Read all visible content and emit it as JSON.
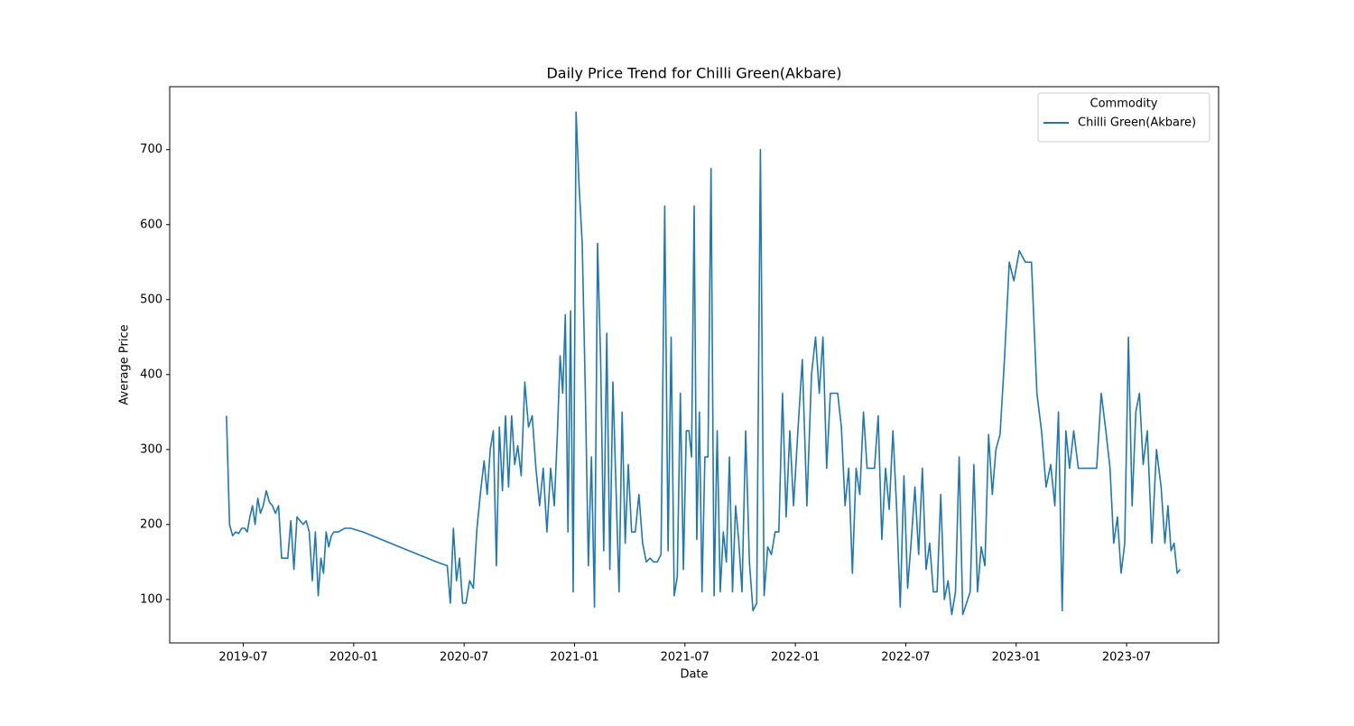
{
  "chart_data": {
    "type": "line",
    "title": "Daily Price Trend for Chilli Green(Akbare)",
    "xlabel": "Date",
    "ylabel": "Average Price",
    "legend_title": "Commodity",
    "legend": "upper right",
    "xlim": [
      "2019-03",
      "2023-12"
    ],
    "xticks": [
      "2019-07",
      "2020-01",
      "2020-07",
      "2021-01",
      "2021-07",
      "2022-01",
      "2022-07",
      "2023-01",
      "2023-07"
    ],
    "ylim": [
      42,
      784
    ],
    "yticks": [
      100,
      200,
      300,
      400,
      500,
      600,
      700
    ],
    "x": [
      "2019-06",
      "2019-06",
      "2019-06",
      "2019-06",
      "2019-06",
      "2019-06",
      "2019-07",
      "2019-07",
      "2019-07",
      "2019-07",
      "2019-07",
      "2019-07",
      "2019-07",
      "2019-08",
      "2019-08",
      "2019-08",
      "2019-08",
      "2019-08",
      "2019-08",
      "2019-09",
      "2019-09",
      "2019-09",
      "2019-09",
      "2019-09",
      "2019-09",
      "2019-10",
      "2019-10",
      "2019-10",
      "2019-10",
      "2019-10",
      "2019-10",
      "2019-11",
      "2019-11",
      "2019-11",
      "2019-11",
      "2019-11",
      "2019-11",
      "2019-11",
      "2019-12",
      "2019-12",
      "2019-12",
      "2020-01",
      "2020-02",
      "2020-03",
      "2020-04",
      "2020-05",
      "2020-06",
      "2020-06",
      "2020-06",
      "2020-06",
      "2020-06",
      "2020-06",
      "2020-07",
      "2020-07",
      "2020-07",
      "2020-07",
      "2020-07",
      "2020-08",
      "2020-08",
      "2020-08",
      "2020-08",
      "2020-08",
      "2020-08",
      "2020-09",
      "2020-09",
      "2020-09",
      "2020-09",
      "2020-09",
      "2020-09",
      "2020-10",
      "2020-10",
      "2020-10",
      "2020-10",
      "2020-10",
      "2020-11",
      "2020-11",
      "2020-11",
      "2020-11",
      "2020-11",
      "2020-12",
      "2020-12",
      "2020-12",
      "2020-12",
      "2020-12",
      "2020-12",
      "2020-12",
      "2021-01",
      "2021-01",
      "2021-01",
      "2021-01",
      "2021-01",
      "2021-01",
      "2021-02",
      "2021-02",
      "2021-02",
      "2021-02",
      "2021-02",
      "2021-02",
      "2021-03",
      "2021-03",
      "2021-03",
      "2021-03",
      "2021-03",
      "2021-03",
      "2021-04",
      "2021-04",
      "2021-04",
      "2021-04",
      "2021-04",
      "2021-05",
      "2021-05",
      "2021-05",
      "2021-05",
      "2021-05",
      "2021-06",
      "2021-06",
      "2021-06",
      "2021-06",
      "2021-06",
      "2021-06",
      "2021-07",
      "2021-07",
      "2021-07",
      "2021-07",
      "2021-07",
      "2021-07",
      "2021-07",
      "2021-08",
      "2021-08",
      "2021-08",
      "2021-08",
      "2021-08",
      "2021-08",
      "2021-09",
      "2021-09",
      "2021-09",
      "2021-09",
      "2021-09",
      "2021-09",
      "2021-10",
      "2021-10",
      "2021-10",
      "2021-10",
      "2021-10",
      "2021-11",
      "2021-11",
      "2021-11",
      "2021-11",
      "2021-11",
      "2021-12",
      "2021-12",
      "2021-12",
      "2021-12",
      "2021-12",
      "2022-01",
      "2022-01",
      "2022-01",
      "2022-01",
      "2022-02",
      "2022-02",
      "2022-02",
      "2022-02",
      "2022-02",
      "2022-03",
      "2022-03",
      "2022-03",
      "2022-03",
      "2022-03",
      "2022-04",
      "2022-04",
      "2022-04",
      "2022-04",
      "2022-04",
      "2022-05",
      "2022-05",
      "2022-05",
      "2022-05",
      "2022-05",
      "2022-06",
      "2022-06",
      "2022-06",
      "2022-06",
      "2022-06",
      "2022-07",
      "2022-07",
      "2022-07",
      "2022-07",
      "2022-07",
      "2022-08",
      "2022-08",
      "2022-08",
      "2022-08",
      "2022-08",
      "2022-09",
      "2022-09",
      "2022-09",
      "2022-09",
      "2022-09",
      "2022-10",
      "2022-10",
      "2022-10",
      "2022-10",
      "2022-10",
      "2022-11",
      "2022-11",
      "2022-11",
      "2022-11",
      "2022-11",
      "2022-12",
      "2022-12",
      "2022-12",
      "2022-12",
      "2023-01",
      "2023-01",
      "2023-01",
      "2023-02",
      "2023-02",
      "2023-02",
      "2023-02",
      "2023-03",
      "2023-03",
      "2023-03",
      "2023-03",
      "2023-03",
      "2023-04",
      "2023-04",
      "2023-04",
      "2023-04",
      "2023-05",
      "2023-05",
      "2023-05",
      "2023-05",
      "2023-06",
      "2023-06",
      "2023-06",
      "2023-06",
      "2023-06",
      "2023-07",
      "2023-07",
      "2023-07",
      "2023-07",
      "2023-07",
      "2023-08",
      "2023-08",
      "2023-08",
      "2023-08",
      "2023-09",
      "2023-09",
      "2023-09",
      "2023-09",
      "2023-09",
      "2023-09"
    ],
    "series": [
      {
        "name": "Chilli Green(Akbare)",
        "color": "#1f77b4",
        "values": [
          345,
          200,
          185,
          190,
          188,
          195,
          195,
          190,
          210,
          225,
          200,
          235,
          215,
          225,
          245,
          230,
          225,
          215,
          225,
          155,
          155,
          155,
          205,
          140,
          210,
          205,
          200,
          205,
          190,
          125,
          190,
          105,
          155,
          135,
          190,
          170,
          185,
          190,
          190,
          195,
          195,
          190,
          180,
          170,
          160,
          150,
          145,
          95,
          195,
          125,
          155,
          95,
          95,
          125,
          115,
          195,
          245,
          285,
          240,
          300,
          325,
          145,
          330,
          245,
          345,
          250,
          345,
          280,
          305,
          265,
          390,
          330,
          345,
          275,
          225,
          275,
          190,
          275,
          225,
          325,
          425,
          375,
          480,
          190,
          485,
          110,
          750,
          650,
          575,
          380,
          145,
          290,
          90,
          575,
          420,
          165,
          455,
          140,
          390,
          250,
          110,
          350,
          175,
          280,
          190,
          190,
          240,
          175,
          150,
          155,
          150,
          150,
          160,
          625,
          165,
          450,
          105,
          130,
          375,
          140,
          325,
          325,
          290,
          625,
          180,
          350,
          110,
          290,
          290,
          675,
          105,
          325,
          110,
          190,
          150,
          290,
          110,
          225,
          180,
          110,
          325,
          150,
          85,
          95,
          700,
          105,
          170,
          160,
          190,
          190,
          375,
          210,
          325,
          225,
          320,
          420,
          225,
          400,
          450,
          375,
          450,
          275,
          375,
          375,
          375,
          330,
          225,
          275,
          135,
          275,
          240,
          350,
          275,
          275,
          275,
          345,
          180,
          275,
          220,
          325,
          225,
          90,
          265,
          115,
          180,
          250,
          160,
          275,
          140,
          175,
          110,
          110,
          240,
          100,
          125,
          80,
          110,
          290,
          80,
          95,
          110,
          280,
          110,
          170,
          145,
          320,
          240,
          300,
          320,
          425,
          550,
          525,
          565,
          550,
          550,
          375,
          325,
          250,
          280,
          225,
          350,
          85,
          325,
          275,
          325,
          275,
          275,
          275,
          275,
          275,
          375,
          325,
          275,
          175,
          210,
          135,
          175,
          450,
          225,
          350,
          375,
          280,
          325,
          175,
          300,
          250,
          175,
          225,
          165,
          175,
          135,
          140
        ]
      }
    ]
  }
}
